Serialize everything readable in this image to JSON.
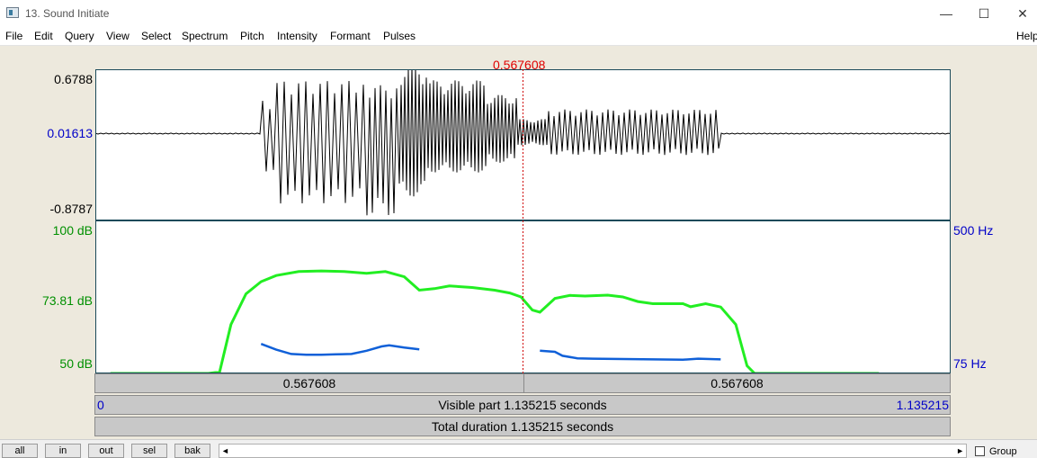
{
  "window": {
    "title": "13. Sound Initiate",
    "minimize_glyph": "—",
    "maximize_glyph": "☐",
    "close_glyph": "✕"
  },
  "menu": {
    "file": "File",
    "edit": "Edit",
    "query": "Query",
    "view": "View",
    "select": "Select",
    "spectrum": "Spectrum",
    "pitch": "Pitch",
    "intensity": "Intensity",
    "formant": "Formant",
    "pulses": "Pulses",
    "help": "Help"
  },
  "cursor": {
    "time_label": "0.567608",
    "time_seconds": 0.567608
  },
  "waveform": {
    "max_label": "0.6788",
    "zero_label": "0.01613",
    "min_label": "-0.8787",
    "max": 0.6788,
    "min": -0.8787,
    "zero": 0.01613
  },
  "analysis": {
    "intensity_top_label": "100 dB",
    "intensity_mid_label": "73.81 dB",
    "intensity_bottom_label": "50 dB",
    "pitch_top_label": "500 Hz",
    "pitch_bottom_label": "75 Hz",
    "intensity_range_db": [
      50,
      100
    ],
    "pitch_range_hz": [
      75,
      500
    ],
    "intensity_color": "#22ee22",
    "pitch_color": "#1060d8",
    "intensity_curve": [
      [
        0.02,
        50
      ],
      [
        0.1,
        50
      ],
      [
        0.15,
        50
      ],
      [
        0.165,
        50.5
      ],
      [
        0.18,
        66
      ],
      [
        0.2,
        76
      ],
      [
        0.22,
        80
      ],
      [
        0.24,
        82
      ],
      [
        0.27,
        83.3
      ],
      [
        0.3,
        83.5
      ],
      [
        0.33,
        83.3
      ],
      [
        0.36,
        82.7
      ],
      [
        0.385,
        83.3
      ],
      [
        0.41,
        81.6
      ],
      [
        0.43,
        77.2
      ],
      [
        0.45,
        77.7
      ],
      [
        0.47,
        78.6
      ],
      [
        0.5,
        78.1
      ],
      [
        0.53,
        77.2
      ],
      [
        0.55,
        76.3
      ],
      [
        0.565,
        75
      ],
      [
        0.58,
        70.7
      ],
      [
        0.59,
        70
      ],
      [
        0.61,
        74.5
      ],
      [
        0.63,
        75.5
      ],
      [
        0.65,
        75.3
      ],
      [
        0.68,
        75.6
      ],
      [
        0.7,
        75
      ],
      [
        0.72,
        73.5
      ],
      [
        0.74,
        72.8
      ],
      [
        0.76,
        72.8
      ],
      [
        0.78,
        72.8
      ],
      [
        0.79,
        71.8
      ],
      [
        0.81,
        72.8
      ],
      [
        0.83,
        71.7
      ],
      [
        0.85,
        66
      ],
      [
        0.865,
        52.5
      ],
      [
        0.875,
        50
      ],
      [
        0.95,
        50
      ],
      [
        1.04,
        50
      ]
    ],
    "pitch_curve_segments": [
      [
        [
          0.22,
          157
        ],
        [
          0.24,
          141
        ],
        [
          0.26,
          129
        ],
        [
          0.28,
          127
        ],
        [
          0.3,
          127
        ],
        [
          0.32,
          128
        ],
        [
          0.34,
          129
        ],
        [
          0.36,
          138
        ],
        [
          0.38,
          150
        ],
        [
          0.39,
          153
        ],
        [
          0.41,
          147
        ],
        [
          0.43,
          142
        ]
      ],
      [
        [
          0.59,
          138
        ],
        [
          0.61,
          135
        ],
        [
          0.62,
          124
        ],
        [
          0.64,
          117
        ],
        [
          0.66,
          116
        ],
        [
          0.7,
          115
        ],
        [
          0.74,
          114
        ],
        [
          0.78,
          113
        ],
        [
          0.8,
          116
        ],
        [
          0.83,
          114
        ]
      ]
    ]
  },
  "time_strip": {
    "left_label": "0.567608",
    "right_label": "0.567608"
  },
  "visible_strip": {
    "start_label": "0",
    "middle_label": "Visible part 1.135215 seconds",
    "end_label": "1.135215",
    "visible_seconds": 1.135215
  },
  "total_strip": {
    "label": "Total duration 1.135215 seconds"
  },
  "bottom": {
    "all": "all",
    "in": "in",
    "out": "out",
    "sel": "sel",
    "bak": "bak",
    "left_arrow": "◄",
    "right_arrow": "►",
    "group": "Group"
  }
}
